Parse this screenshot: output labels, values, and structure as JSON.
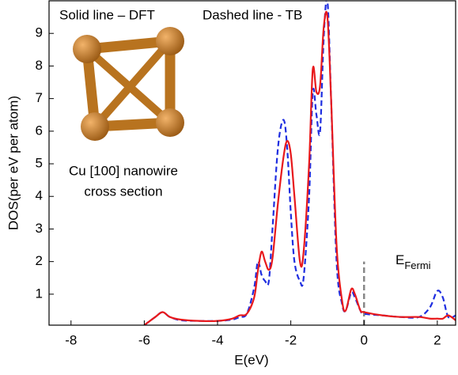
{
  "chart_data": {
    "type": "line",
    "annotations": [
      "Solid line – DFT",
      "Dashed line - TB",
      "Cu [100] nanowire",
      "cross section"
    ],
    "xlabel": "E(eV)",
    "ylabel": "DOS(per eV per atom)",
    "x": [
      -6.0,
      -5.7,
      -5.5,
      -5.3,
      -5.0,
      -4.5,
      -4.0,
      -3.6,
      -3.4,
      -3.2,
      -3.0,
      -2.9,
      -2.8,
      -2.7,
      -2.6,
      -2.5,
      -2.35,
      -2.2,
      -2.1,
      -2.0,
      -1.9,
      -1.75,
      -1.65,
      -1.5,
      -1.4,
      -1.3,
      -1.2,
      -1.1,
      -1.0,
      -0.9,
      -0.75,
      -0.6,
      -0.5,
      -0.35,
      -0.25,
      -0.1,
      0.0,
      0.5,
      1.0,
      1.5,
      1.8,
      2.0,
      2.15,
      2.3,
      2.5
    ],
    "series": [
      {
        "name": "DFT",
        "color": "#e8191c",
        "dash": false,
        "values": [
          0.05,
          0.3,
          0.45,
          0.3,
          0.22,
          0.18,
          0.18,
          0.25,
          0.35,
          0.4,
          0.9,
          1.7,
          2.3,
          2.0,
          1.75,
          2.1,
          3.8,
          5.2,
          5.7,
          5.3,
          4.0,
          2.0,
          2.3,
          5.0,
          7.9,
          7.2,
          7.4,
          9.2,
          9.5,
          7.0,
          2.5,
          0.8,
          0.5,
          1.15,
          1.0,
          0.5,
          0.45,
          0.35,
          0.3,
          0.3,
          0.25,
          0.25,
          0.25,
          0.35,
          0.2
        ]
      },
      {
        "name": "TB",
        "color": "#1f2ee0",
        "dash": true,
        "values": [
          0.05,
          0.3,
          0.45,
          0.3,
          0.2,
          0.18,
          0.18,
          0.22,
          0.3,
          0.4,
          1.2,
          2.0,
          1.6,
          1.4,
          1.4,
          3.0,
          5.5,
          6.35,
          5.5,
          3.5,
          2.0,
          1.4,
          1.5,
          4.0,
          7.2,
          6.5,
          6.0,
          8.9,
          10.0,
          7.0,
          2.0,
          0.7,
          0.5,
          1.05,
          0.9,
          0.5,
          0.4,
          0.35,
          0.3,
          0.3,
          0.6,
          1.1,
          0.9,
          0.3,
          0.35
        ]
      }
    ],
    "fermi": {
      "x": 0,
      "top": 2,
      "label": "E",
      "subscript": "Fermi"
    },
    "xlim": [
      -8.6,
      2.5
    ],
    "ylim": [
      0.05,
      10
    ],
    "xticks": [
      -8,
      -6,
      -4,
      -2,
      0,
      2
    ],
    "yticks": [
      1,
      2,
      3,
      4,
      5,
      6,
      7,
      8,
      9
    ]
  }
}
